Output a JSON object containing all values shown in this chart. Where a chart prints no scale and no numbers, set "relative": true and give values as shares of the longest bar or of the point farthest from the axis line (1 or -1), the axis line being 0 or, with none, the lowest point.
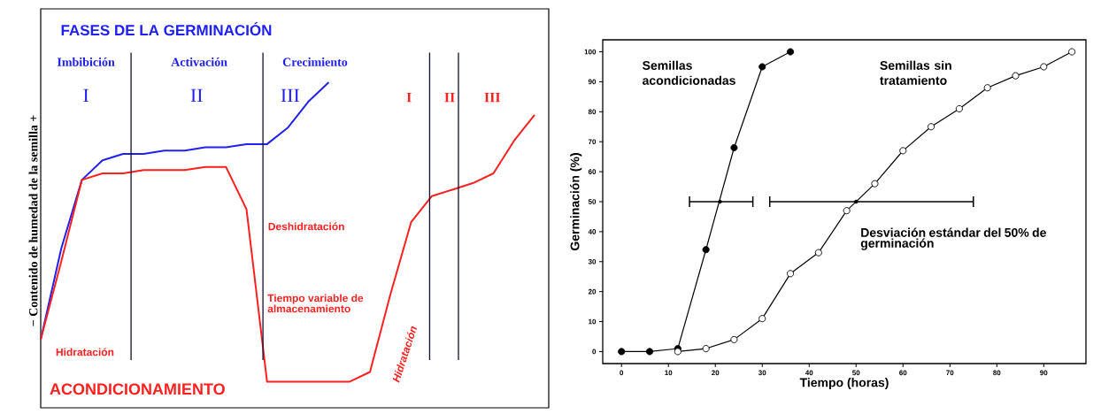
{
  "chart_data": [
    {
      "type": "line",
      "relative": true,
      "title": "FASES DE LA GERMINACIÓN",
      "ylabel": "− Contenido de humedad de la semilla +",
      "categories": [
        null,
        null,
        null,
        null,
        null,
        null,
        null,
        null,
        null,
        null,
        null,
        null,
        null,
        null,
        null,
        null,
        null,
        null,
        null,
        null,
        null,
        null,
        null,
        null,
        null
      ],
      "series": [
        {
          "color": "#2020f0",
          "values": [
            0.21,
            0.49,
            0.7,
            0.76,
            0.78,
            0.78,
            0.79,
            0.79,
            0.8,
            0.8,
            0.81,
            0.81,
            0.86,
            0.94,
            1.0,
            null,
            null,
            null,
            null,
            null,
            null,
            null,
            null,
            null,
            null
          ]
        },
        {
          "color": "#ff2020",
          "values": [
            0.21,
            0.45,
            0.7,
            0.72,
            0.72,
            0.73,
            0.73,
            0.73,
            0.74,
            0.74,
            0.61,
            0.08,
            0.08,
            0.08,
            0.08,
            0.08,
            0.11,
            0.35,
            0.57,
            0.65,
            0.67,
            0.69,
            0.72,
            0.82,
            0.9
          ]
        }
      ],
      "annotations": [
        "Imbibición",
        "Activación",
        "Crecimiento",
        "I",
        "II",
        "III",
        "I",
        "II",
        "III",
        "Hidratación",
        "Deshidratación",
        "Tiempo variable de almacenamiento",
        "Hidratación",
        "ACONDICIONAMIENTO"
      ]
    },
    {
      "type": "line",
      "xlabel": "Tiempo (horas)",
      "ylabel": "Germinación (%)",
      "xlim": [
        -4,
        99
      ],
      "ylim": [
        -4,
        104
      ],
      "xticks": [
        0,
        10,
        20,
        30,
        40,
        50,
        60,
        70,
        80,
        90
      ],
      "yticks": [
        0,
        10,
        20,
        30,
        40,
        50,
        60,
        70,
        80,
        90,
        100
      ],
      "series": [
        {
          "name": "Semillas acondicionadas",
          "color": "#000000",
          "marker": "circle",
          "x": [
            0,
            6,
            12,
            18,
            24,
            30,
            36
          ],
          "values": [
            0,
            0,
            1,
            34,
            68,
            95,
            100
          ]
        },
        {
          "name": "Semillas sin tratamiento",
          "color": "#000000",
          "marker": "circle",
          "x": [
            12,
            18,
            24,
            30,
            36,
            42,
            48,
            54,
            60,
            66,
            72,
            78,
            84,
            90,
            96
          ],
          "values": [
            0,
            1,
            4,
            11,
            26,
            33,
            47,
            56,
            67,
            75,
            81,
            88,
            92,
            95,
            100
          ]
        },
        {
          "type": "scatter",
          "color": "#000000",
          "marker": "none",
          "x": [
            21,
            50
          ],
          "values": [
            50,
            50
          ],
          "xerrors": [
            [
              14.5,
              28
            ],
            [
              31.6,
              75
            ]
          ]
        }
      ],
      "annotations": [
        "Desviación estándar del 50% de germinación"
      ]
    }
  ]
}
